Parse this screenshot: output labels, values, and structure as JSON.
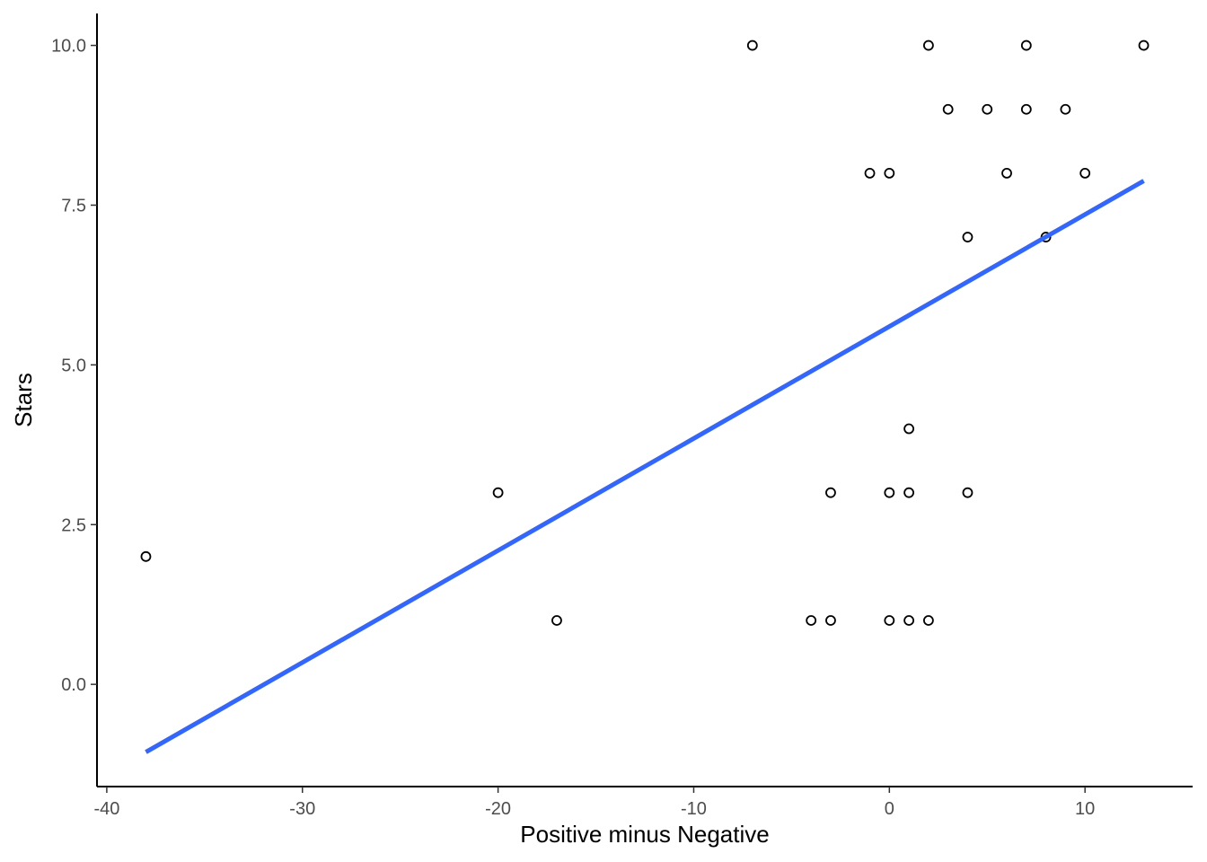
{
  "chart_data": {
    "type": "scatter",
    "title": "",
    "xlabel": "Positive minus Negative",
    "ylabel": "Stars",
    "xlim": [
      -40.5,
      15.5
    ],
    "ylim": [
      -1.6,
      10.5
    ],
    "xticks": [
      -40,
      -30,
      -20,
      -10,
      0,
      10
    ],
    "xtick_labels": [
      "-40",
      "-30",
      "-20",
      "-10",
      "0",
      "10"
    ],
    "yticks": [
      0,
      2.5,
      5,
      7.5,
      10
    ],
    "ytick_labels": [
      "0.0",
      "2.5",
      "5.0",
      "7.5",
      "10.0"
    ],
    "grid": false,
    "points": [
      {
        "x": -38,
        "y": 2
      },
      {
        "x": -20,
        "y": 3
      },
      {
        "x": -17,
        "y": 1
      },
      {
        "x": -7,
        "y": 10
      },
      {
        "x": -4,
        "y": 1
      },
      {
        "x": -3,
        "y": 1
      },
      {
        "x": -3,
        "y": 3
      },
      {
        "x": -1,
        "y": 8
      },
      {
        "x": 0,
        "y": 8
      },
      {
        "x": 0,
        "y": 3
      },
      {
        "x": 0,
        "y": 1
      },
      {
        "x": 1,
        "y": 4
      },
      {
        "x": 1,
        "y": 3
      },
      {
        "x": 1,
        "y": 1
      },
      {
        "x": 2,
        "y": 10
      },
      {
        "x": 2,
        "y": 1
      },
      {
        "x": 3,
        "y": 9
      },
      {
        "x": 4,
        "y": 7
      },
      {
        "x": 4,
        "y": 3
      },
      {
        "x": 5,
        "y": 9
      },
      {
        "x": 6,
        "y": 8
      },
      {
        "x": 7,
        "y": 10
      },
      {
        "x": 7,
        "y": 9
      },
      {
        "x": 8,
        "y": 7
      },
      {
        "x": 9,
        "y": 9
      },
      {
        "x": 10,
        "y": 8
      },
      {
        "x": 13,
        "y": 10
      }
    ],
    "fit_line": {
      "type": "linear",
      "color": "#3366ff",
      "x": [
        -38,
        13
      ],
      "y": [
        -1.06,
        7.88
      ]
    },
    "point_style": {
      "fill": "#ffffff",
      "stroke": "#000000"
    }
  }
}
